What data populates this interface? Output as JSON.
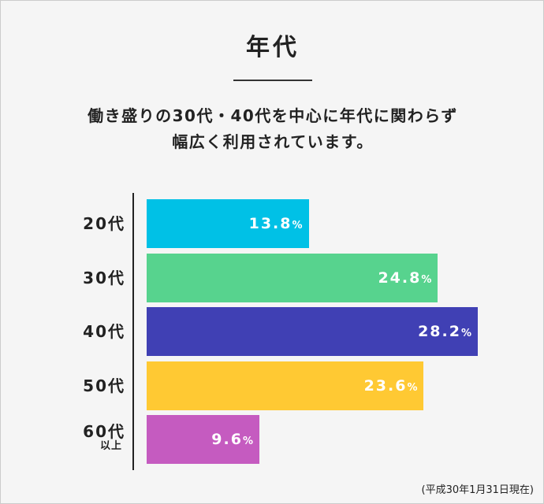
{
  "title": "年代",
  "description": [
    "働き盛りの30代・40代を中心に年代に関わらず",
    "幅広く利用されています。"
  ],
  "source_note": "(平成30年1月31日現在)",
  "chart_data": {
    "type": "bar",
    "orientation": "horizontal",
    "categories": [
      {
        "label": "20代",
        "sublabel": ""
      },
      {
        "label": "30代",
        "sublabel": ""
      },
      {
        "label": "40代",
        "sublabel": ""
      },
      {
        "label": "50代",
        "sublabel": ""
      },
      {
        "label": "60代",
        "sublabel": "以上"
      }
    ],
    "values": [
      13.8,
      24.8,
      28.2,
      23.6,
      9.6
    ],
    "value_labels": [
      "13.8",
      "24.8",
      "28.2",
      "23.6",
      "9.6"
    ],
    "unit": "%",
    "colors": [
      "#00c1e6",
      "#57d38e",
      "#4040b4",
      "#ffc933",
      "#c55bc0"
    ],
    "grid": false,
    "legend": "none"
  }
}
